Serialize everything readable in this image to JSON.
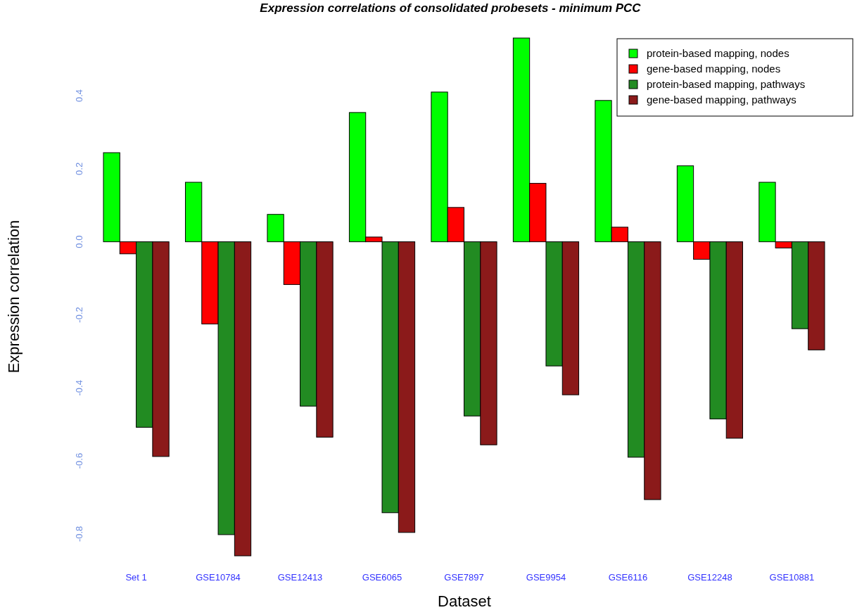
{
  "chart_data": {
    "type": "bar",
    "title": "Expression correlations of consolidated probesets - minimum PCC",
    "xlabel": "Dataset",
    "ylabel": "Expression correlation",
    "categories": [
      "Set 1",
      "GSE10784",
      "GSE12413",
      "GSE6065",
      "GSE7897",
      "GSE9954",
      "GSE6116",
      "GSE12248",
      "GSE10881"
    ],
    "series": [
      {
        "name": "protein-based mapping, nodes",
        "color": "#00ff00",
        "values": [
          0.244,
          0.163,
          0.075,
          0.354,
          0.41,
          0.558,
          0.387,
          0.208,
          0.163
        ]
      },
      {
        "name": "gene-based mapping, nodes",
        "color": "#ff0000",
        "values": [
          -0.033,
          -0.225,
          -0.117,
          0.013,
          0.094,
          0.16,
          0.04,
          -0.048,
          -0.017
        ]
      },
      {
        "name": "protein-based mapping, pathways",
        "color": "#228b22",
        "values": [
          -0.508,
          -0.802,
          -0.45,
          -0.742,
          -0.477,
          -0.34,
          -0.59,
          -0.485,
          -0.238
        ]
      },
      {
        "name": "gene-based mapping, pathways",
        "color": "#8b1a1a",
        "values": [
          -0.588,
          -0.86,
          -0.535,
          -0.796,
          -0.556,
          -0.419,
          -0.706,
          -0.538,
          -0.296
        ]
      }
    ],
    "ylim": [
      -0.86,
      0.56
    ],
    "yticks": [
      {
        "value": -0.8,
        "label": "-0.8"
      },
      {
        "value": -0.6,
        "label": "-0.6"
      },
      {
        "value": -0.4,
        "label": "-0.4"
      },
      {
        "value": -0.2,
        "label": "-0.2"
      },
      {
        "value": 0,
        "label": "0.0"
      },
      {
        "value": 0.2,
        "label": "0.2"
      },
      {
        "value": 0.4,
        "label": "0.4"
      }
    ],
    "grid": false,
    "legend": "top right"
  }
}
